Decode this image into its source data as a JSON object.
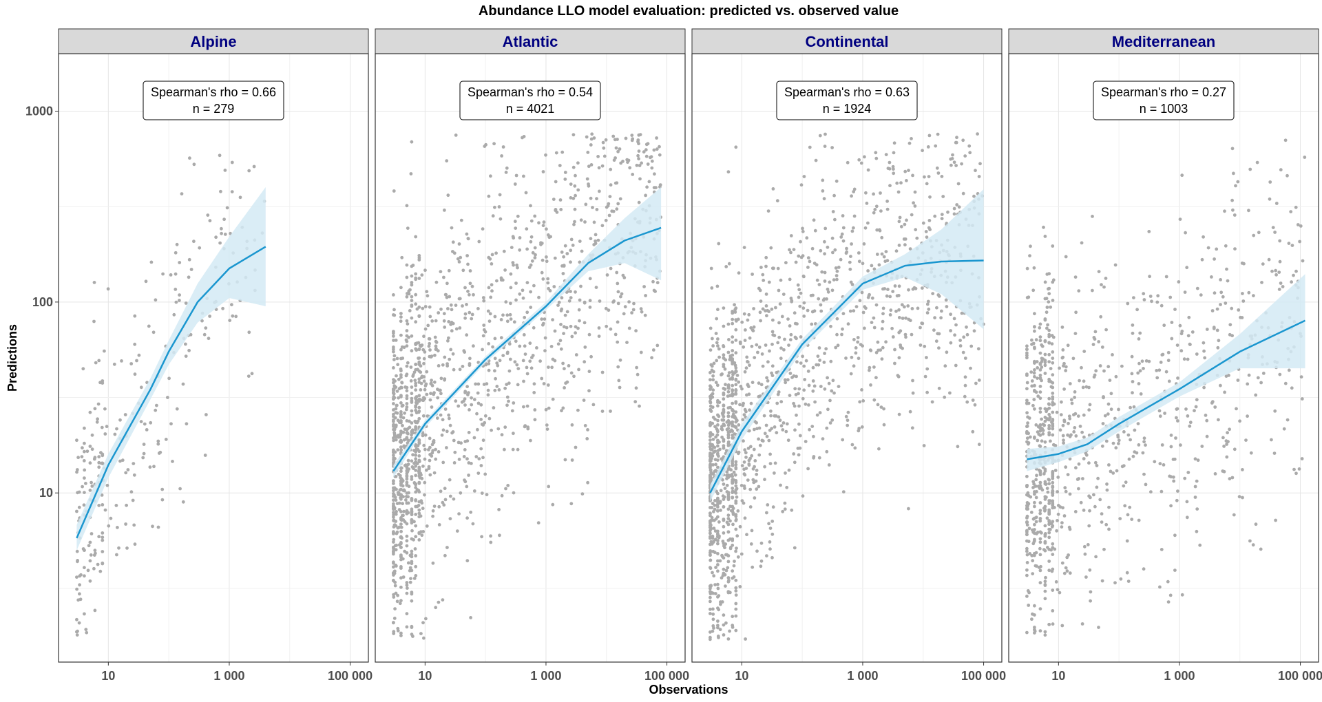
{
  "chart_data": {
    "type": "scatter",
    "title": "Abundance LLO model evaluation: predicted vs. observed value",
    "xlabel": "Observations",
    "ylabel": "Predictions",
    "x_scale": "log10",
    "y_scale": "log10",
    "x_range": [
      1.5,
      200000
    ],
    "y_range": [
      1.3,
      2000
    ],
    "x_ticks": [
      10,
      1000,
      100000
    ],
    "x_tick_labels": [
      "10",
      "1 000",
      "100 000"
    ],
    "y_ticks": [
      10,
      100,
      1000
    ],
    "y_tick_labels": [
      "10",
      "100",
      "1000"
    ],
    "grid": true,
    "colors": {
      "points": "#aaaaaa",
      "smooth_line": "#1a96cf",
      "ribbon": "#d4eaf5",
      "strip_fill": "#d9d9d9",
      "strip_text": "#000080"
    },
    "panels": [
      {
        "name": "Alpine",
        "annotation": [
          "Spearman's rho = 0.66",
          "n = 279"
        ],
        "n_points": 279,
        "x_min": 3,
        "x_max": 4000,
        "smooth": [
          [
            3,
            5.8
          ],
          [
            10,
            14
          ],
          [
            50,
            35
          ],
          [
            100,
            55
          ],
          [
            300,
            100
          ],
          [
            1000,
            150
          ],
          [
            4000,
            195
          ]
        ],
        "ribbon_low": [
          [
            3,
            5
          ],
          [
            10,
            12
          ],
          [
            50,
            31
          ],
          [
            100,
            47
          ],
          [
            300,
            78
          ],
          [
            1000,
            105
          ],
          [
            4000,
            95
          ]
        ],
        "ribbon_high": [
          [
            3,
            6.8
          ],
          [
            10,
            16
          ],
          [
            50,
            40
          ],
          [
            100,
            63
          ],
          [
            300,
            125
          ],
          [
            1000,
            220
          ],
          [
            4000,
            400
          ]
        ]
      },
      {
        "name": "Atlantic",
        "annotation": [
          "Spearman's rho = 0.54",
          "n = 4021"
        ],
        "n_points": 4021,
        "x_min": 3,
        "x_max": 80000,
        "smooth": [
          [
            3,
            13
          ],
          [
            10,
            23
          ],
          [
            100,
            50
          ],
          [
            1000,
            95
          ],
          [
            5000,
            160
          ],
          [
            20000,
            210
          ],
          [
            80000,
            245
          ]
        ],
        "ribbon_low": [
          [
            3,
            12
          ],
          [
            10,
            22
          ],
          [
            100,
            48
          ],
          [
            1000,
            91
          ],
          [
            5000,
            145
          ],
          [
            20000,
            160
          ],
          [
            80000,
            130
          ]
        ],
        "ribbon_high": [
          [
            3,
            14
          ],
          [
            10,
            24
          ],
          [
            100,
            52
          ],
          [
            1000,
            100
          ],
          [
            5000,
            178
          ],
          [
            20000,
            275
          ],
          [
            80000,
            400
          ]
        ]
      },
      {
        "name": "Continental",
        "annotation": [
          "Spearman's rho = 0.63",
          "n = 1924"
        ],
        "n_points": 1924,
        "x_min": 3,
        "x_max": 100000,
        "smooth": [
          [
            3,
            10
          ],
          [
            10,
            21
          ],
          [
            100,
            60
          ],
          [
            1000,
            125
          ],
          [
            5000,
            155
          ],
          [
            20000,
            163
          ],
          [
            100000,
            165
          ]
        ],
        "ribbon_low": [
          [
            3,
            9
          ],
          [
            10,
            19
          ],
          [
            100,
            56
          ],
          [
            1000,
            116
          ],
          [
            5000,
            135
          ],
          [
            20000,
            110
          ],
          [
            100000,
            72
          ]
        ],
        "ribbon_high": [
          [
            3,
            11
          ],
          [
            10,
            23
          ],
          [
            100,
            64
          ],
          [
            1000,
            136
          ],
          [
            5000,
            178
          ],
          [
            20000,
            240
          ],
          [
            100000,
            390
          ]
        ]
      },
      {
        "name": "Mediterranean",
        "annotation": [
          "Spearman's rho = 0.27",
          "n = 1003"
        ],
        "n_points": 1003,
        "x_min": 3,
        "x_max": 120000,
        "smooth": [
          [
            3,
            15
          ],
          [
            10,
            16
          ],
          [
            30,
            18
          ],
          [
            100,
            23
          ],
          [
            1000,
            35
          ],
          [
            10000,
            55
          ],
          [
            120000,
            80
          ]
        ],
        "ribbon_low": [
          [
            3,
            13
          ],
          [
            10,
            14.5
          ],
          [
            30,
            16.5
          ],
          [
            100,
            21
          ],
          [
            1000,
            32
          ],
          [
            10000,
            45
          ],
          [
            120000,
            45
          ]
        ],
        "ribbon_high": [
          [
            3,
            17
          ],
          [
            10,
            17.5
          ],
          [
            30,
            19.5
          ],
          [
            100,
            25
          ],
          [
            1000,
            38
          ],
          [
            10000,
            68
          ],
          [
            120000,
            140
          ]
        ]
      }
    ]
  }
}
